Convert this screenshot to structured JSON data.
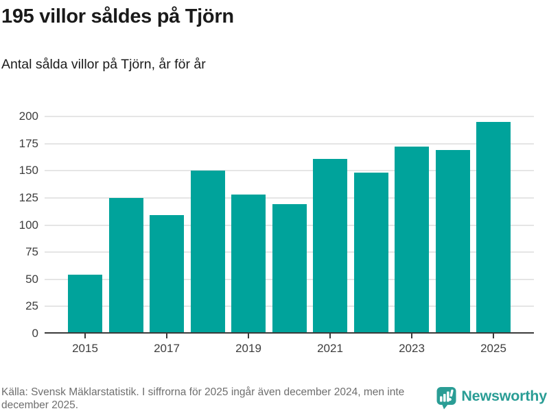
{
  "header": {
    "title": "195 villor såldes på Tjörn",
    "subtitle": "Antal sålda villor på Tjörn, år för år"
  },
  "chart_data": {
    "type": "bar",
    "title": "195 villor såldes på Tjörn",
    "subtitle": "Antal sålda villor på Tjörn, år för år",
    "categories": [
      "2015",
      "2016",
      "2017",
      "2018",
      "2019",
      "2020",
      "2021",
      "2022",
      "2023",
      "2024",
      "2025"
    ],
    "values": [
      54,
      125,
      109,
      150,
      128,
      119,
      161,
      148,
      172,
      169,
      195
    ],
    "xlabel": "",
    "ylabel": "",
    "ylim": [
      0,
      200
    ],
    "yticks": [
      0,
      25,
      50,
      75,
      100,
      125,
      150,
      175,
      200
    ],
    "xtick_labels": [
      "2015",
      "2017",
      "2019",
      "2021",
      "2023",
      "2025"
    ],
    "grid": true,
    "legend": false,
    "bar_color": "#00a39b",
    "gridline_color": "#e5e5e5",
    "axis_color": "#3a3a3a",
    "tick_label_color": "#3d3d3d"
  },
  "footer": {
    "source_text": "Källa: Svensk Mäklarstatistik. I siffrorna för 2025 ingår även december 2024, men inte december 2025.",
    "brand": "Newsworthy",
    "brand_color": "#2a9d95"
  }
}
